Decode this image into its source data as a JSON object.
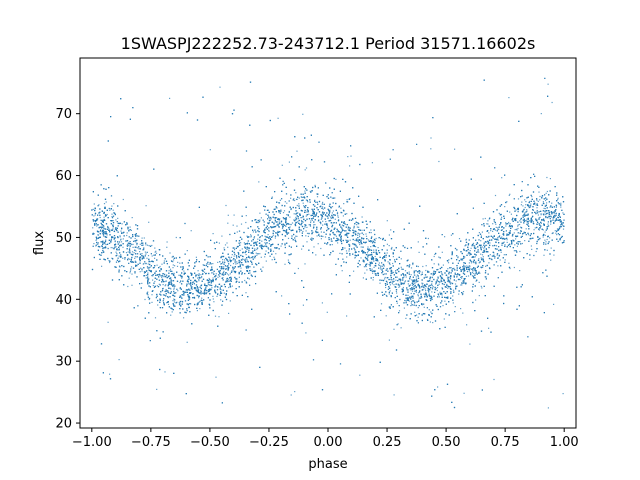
{
  "chart_data": {
    "type": "scatter",
    "title": "1SWASPJ222252.73-243712.1 Period 31571.16602s",
    "xlabel": "phase",
    "ylabel": "flux",
    "xlim": [
      -1.05,
      1.05
    ],
    "ylim": [
      19.2,
      79.0
    ],
    "xticks": [
      -1.0,
      -0.75,
      -0.5,
      -0.25,
      0.0,
      0.25,
      0.5,
      0.75,
      1.0
    ],
    "xtick_labels": [
      "−1.00",
      "−0.75",
      "−0.50",
      "−0.25",
      "0.00",
      "0.25",
      "0.50",
      "0.75",
      "1.00"
    ],
    "yticks": [
      20,
      30,
      40,
      50,
      60,
      70
    ],
    "ytick_labels": [
      "20",
      "30",
      "40",
      "50",
      "60",
      "70"
    ],
    "grid": false,
    "legend": "none",
    "marker_color": "#1f77b4",
    "series": [
      {
        "x_range": [
          -1.0,
          1.0
        ],
        "trend_x": [
          -1.0,
          -0.9,
          -0.8,
          -0.7,
          -0.6,
          -0.5,
          -0.4,
          -0.3,
          -0.2,
          -0.1,
          0.0,
          0.1,
          0.2,
          0.3,
          0.4,
          0.5,
          0.6,
          0.7,
          0.8,
          0.9,
          1.0
        ],
        "trend_y": [
          52.5,
          50.0,
          46.5,
          43.0,
          41.8,
          42.5,
          45.5,
          49.0,
          52.0,
          53.5,
          52.5,
          50.0,
          46.5,
          43.0,
          41.8,
          42.5,
          45.5,
          49.0,
          52.0,
          53.5,
          52.5
        ],
        "band_halfwidth": 3.2,
        "outlier_y_range": [
          22,
          76
        ]
      }
    ]
  }
}
